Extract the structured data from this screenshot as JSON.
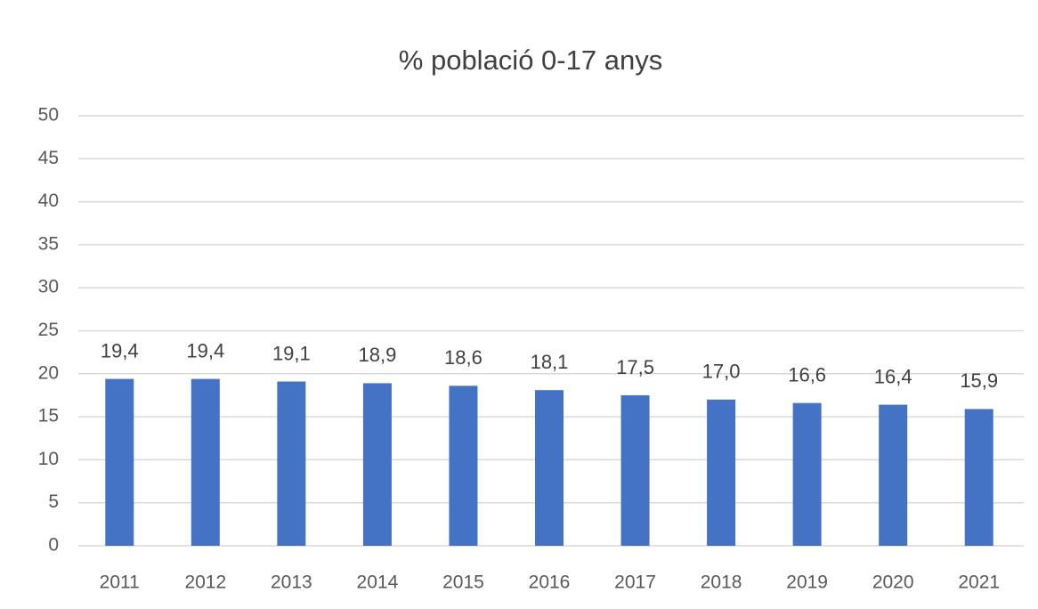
{
  "chart_data": {
    "type": "bar",
    "title": "% població 0-17 anys",
    "categories": [
      "2011",
      "2012",
      "2013",
      "2014",
      "2015",
      "2016",
      "2017",
      "2018",
      "2019",
      "2020",
      "2021"
    ],
    "values": [
      19.4,
      19.4,
      19.1,
      18.9,
      18.6,
      18.1,
      17.5,
      17.0,
      16.6,
      16.4,
      15.9
    ],
    "value_labels": [
      "19,4",
      "19,4",
      "19,1",
      "18,9",
      "18,6",
      "18,1",
      "17,5",
      "17,0",
      "16,6",
      "16,4",
      "15,9"
    ],
    "color": "#4472c4",
    "ylim": [
      0,
      50
    ],
    "yticks": [
      0,
      5,
      10,
      15,
      20,
      25,
      30,
      35,
      40,
      45,
      50
    ],
    "grid": true
  }
}
